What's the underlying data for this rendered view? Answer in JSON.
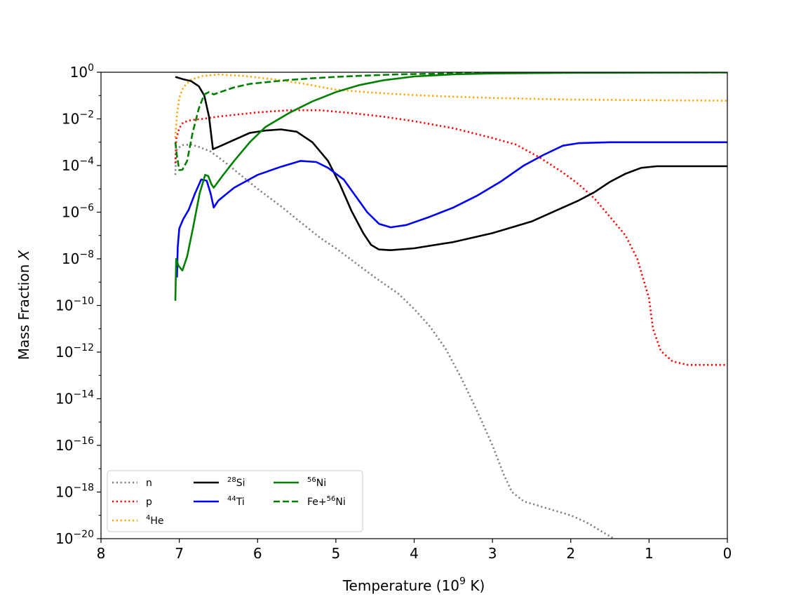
{
  "chart_data": {
    "type": "line",
    "xlabel": "Temperature (10^9 K)",
    "xlabel_main": "Temperature (10",
    "xlabel_exp": "9",
    "xlabel_tail": " K)",
    "ylabel": "Mass Fraction X",
    "ylabel_main": "Mass Fraction ",
    "ylabel_var": "X",
    "xlim": [
      8,
      0
    ],
    "ylim_log10": [
      -20,
      0
    ],
    "y_scale": "log",
    "x_ticks": [
      {
        "value": 8,
        "label": "8"
      },
      {
        "value": 7,
        "label": "7"
      },
      {
        "value": 6,
        "label": "6"
      },
      {
        "value": 5,
        "label": "5"
      },
      {
        "value": 4,
        "label": "4"
      },
      {
        "value": 3,
        "label": "3"
      },
      {
        "value": 2,
        "label": "2"
      },
      {
        "value": 1,
        "label": "1"
      },
      {
        "value": 0,
        "label": "0"
      }
    ],
    "y_ticks": [
      {
        "exp": 0,
        "base": "10",
        "sup": "0"
      },
      {
        "exp": -2,
        "base": "10",
        "sup": "−2"
      },
      {
        "exp": -4,
        "base": "10",
        "sup": "−4"
      },
      {
        "exp": -6,
        "base": "10",
        "sup": "−6"
      },
      {
        "exp": -8,
        "base": "10",
        "sup": "−8"
      },
      {
        "exp": -10,
        "base": "10",
        "sup": "−10"
      },
      {
        "exp": -12,
        "base": "10",
        "sup": "−12"
      },
      {
        "exp": -14,
        "base": "10",
        "sup": "−14"
      },
      {
        "exp": -16,
        "base": "10",
        "sup": "−16"
      },
      {
        "exp": -18,
        "base": "10",
        "sup": "−18"
      },
      {
        "exp": -20,
        "base": "10",
        "sup": "−20"
      }
    ],
    "legend_position": "lower-left",
    "series": [
      {
        "name": "n",
        "label_pre": "",
        "label_sup": "",
        "label_main": "n",
        "color": "#808080",
        "dash": "dotted",
        "points": [
          [
            7.05,
            -4.4
          ],
          [
            7.04,
            -3.4
          ],
          [
            7.02,
            -3.25
          ],
          [
            6.95,
            -3.12
          ],
          [
            6.85,
            -3.1
          ],
          [
            6.75,
            -3.2
          ],
          [
            6.6,
            -3.4
          ],
          [
            6.4,
            -3.9
          ],
          [
            6.2,
            -4.45
          ],
          [
            6.0,
            -5.0
          ],
          [
            5.7,
            -5.75
          ],
          [
            5.5,
            -6.3
          ],
          [
            5.2,
            -7.1
          ],
          [
            5.0,
            -7.55
          ],
          [
            4.7,
            -8.3
          ],
          [
            4.5,
            -8.8
          ],
          [
            4.2,
            -9.5
          ],
          [
            4.0,
            -10.15
          ],
          [
            3.8,
            -10.9
          ],
          [
            3.6,
            -11.85
          ],
          [
            3.4,
            -13.1
          ],
          [
            3.2,
            -14.5
          ],
          [
            3.0,
            -16.0
          ],
          [
            2.85,
            -17.3
          ],
          [
            2.75,
            -18.0
          ],
          [
            2.6,
            -18.4
          ],
          [
            2.3,
            -18.7
          ],
          [
            2.0,
            -19.0
          ],
          [
            1.8,
            -19.3
          ],
          [
            1.6,
            -19.7
          ],
          [
            1.45,
            -20.0
          ],
          [
            1.35,
            -20.1
          ]
        ]
      },
      {
        "name": "p",
        "label_pre": "",
        "label_sup": "",
        "label_main": "p",
        "color": "#ff0000",
        "dash": "dotted",
        "points": [
          [
            7.05,
            -3.9
          ],
          [
            7.04,
            -2.85
          ],
          [
            7.0,
            -2.4
          ],
          [
            6.95,
            -2.15
          ],
          [
            6.85,
            -2.05
          ],
          [
            6.7,
            -2.0
          ],
          [
            6.5,
            -1.9
          ],
          [
            6.0,
            -1.72
          ],
          [
            5.6,
            -1.63
          ],
          [
            5.2,
            -1.63
          ],
          [
            4.8,
            -1.75
          ],
          [
            4.4,
            -1.9
          ],
          [
            4.0,
            -2.1
          ],
          [
            3.5,
            -2.4
          ],
          [
            3.0,
            -2.82
          ],
          [
            2.7,
            -3.1
          ],
          [
            2.4,
            -3.65
          ],
          [
            2.1,
            -4.3
          ],
          [
            1.9,
            -4.8
          ],
          [
            1.7,
            -5.4
          ],
          [
            1.5,
            -6.2
          ],
          [
            1.3,
            -7.0
          ],
          [
            1.15,
            -8.0
          ],
          [
            1.0,
            -9.7
          ],
          [
            0.95,
            -11.0
          ],
          [
            0.85,
            -11.95
          ],
          [
            0.7,
            -12.4
          ],
          [
            0.5,
            -12.55
          ],
          [
            0.0,
            -12.55
          ]
        ]
      },
      {
        "name": "4He",
        "label_pre": "",
        "label_sup": "4",
        "label_main": "He",
        "color": "#ffa500",
        "dash": "dotted",
        "points": [
          [
            7.05,
            -2.8
          ],
          [
            7.03,
            -1.8
          ],
          [
            7.0,
            -1.1
          ],
          [
            6.95,
            -0.65
          ],
          [
            6.85,
            -0.32
          ],
          [
            6.7,
            -0.16
          ],
          [
            6.5,
            -0.1
          ],
          [
            6.2,
            -0.15
          ],
          [
            5.8,
            -0.3
          ],
          [
            5.4,
            -0.5
          ],
          [
            5.0,
            -0.75
          ],
          [
            4.5,
            -0.88
          ],
          [
            4.0,
            -0.98
          ],
          [
            3.5,
            -1.05
          ],
          [
            3.0,
            -1.1
          ],
          [
            2.5,
            -1.14
          ],
          [
            2.0,
            -1.17
          ],
          [
            1.0,
            -1.2
          ],
          [
            0.0,
            -1.22
          ]
        ]
      },
      {
        "name": "28Si",
        "label_pre": "",
        "label_sup": "28",
        "label_main": "Si",
        "color": "#000000",
        "dash": "solid",
        "points": [
          [
            7.05,
            -0.2
          ],
          [
            6.95,
            -0.3
          ],
          [
            6.85,
            -0.38
          ],
          [
            6.75,
            -0.6
          ],
          [
            6.68,
            -1.0
          ],
          [
            6.62,
            -1.9
          ],
          [
            6.57,
            -3.3
          ],
          [
            6.5,
            -3.2
          ],
          [
            6.3,
            -2.9
          ],
          [
            6.1,
            -2.6
          ],
          [
            5.9,
            -2.5
          ],
          [
            5.7,
            -2.45
          ],
          [
            5.5,
            -2.55
          ],
          [
            5.3,
            -3.0
          ],
          [
            5.1,
            -3.8
          ],
          [
            4.95,
            -4.8
          ],
          [
            4.8,
            -5.95
          ],
          [
            4.65,
            -6.9
          ],
          [
            4.55,
            -7.4
          ],
          [
            4.45,
            -7.6
          ],
          [
            4.3,
            -7.63
          ],
          [
            4.0,
            -7.55
          ],
          [
            3.5,
            -7.28
          ],
          [
            3.0,
            -6.9
          ],
          [
            2.5,
            -6.4
          ],
          [
            2.2,
            -5.95
          ],
          [
            1.9,
            -5.5
          ],
          [
            1.7,
            -5.15
          ],
          [
            1.5,
            -4.7
          ],
          [
            1.3,
            -4.35
          ],
          [
            1.1,
            -4.1
          ],
          [
            0.9,
            -4.03
          ],
          [
            0.5,
            -4.03
          ],
          [
            0.0,
            -4.03
          ]
        ]
      },
      {
        "name": "44Ti",
        "label_pre": "",
        "label_sup": "44",
        "label_main": "Ti",
        "color": "#0000ff",
        "dash": "solid",
        "points": [
          [
            7.03,
            -8.8
          ],
          [
            7.02,
            -7.5
          ],
          [
            7.0,
            -6.7
          ],
          [
            6.95,
            -6.3
          ],
          [
            6.88,
            -5.9
          ],
          [
            6.8,
            -5.2
          ],
          [
            6.72,
            -4.6
          ],
          [
            6.65,
            -4.65
          ],
          [
            6.6,
            -5.2
          ],
          [
            6.56,
            -5.8
          ],
          [
            6.5,
            -5.5
          ],
          [
            6.3,
            -4.95
          ],
          [
            6.0,
            -4.4
          ],
          [
            5.7,
            -4.05
          ],
          [
            5.45,
            -3.8
          ],
          [
            5.25,
            -3.85
          ],
          [
            5.1,
            -4.1
          ],
          [
            4.9,
            -4.6
          ],
          [
            4.75,
            -5.3
          ],
          [
            4.6,
            -6.0
          ],
          [
            4.45,
            -6.5
          ],
          [
            4.3,
            -6.65
          ],
          [
            4.1,
            -6.55
          ],
          [
            3.8,
            -6.2
          ],
          [
            3.5,
            -5.8
          ],
          [
            3.2,
            -5.3
          ],
          [
            2.9,
            -4.7
          ],
          [
            2.6,
            -4.0
          ],
          [
            2.35,
            -3.55
          ],
          [
            2.1,
            -3.15
          ],
          [
            1.9,
            -3.04
          ],
          [
            1.5,
            -3.0
          ],
          [
            0.0,
            -3.0
          ]
        ]
      },
      {
        "name": "56Ni",
        "label_pre": "",
        "label_sup": "56",
        "label_main": "Ni",
        "color": "#008000",
        "dash": "solid",
        "points": [
          [
            7.05,
            -9.8
          ],
          [
            7.04,
            -8.0
          ],
          [
            7.01,
            -8.3
          ],
          [
            6.96,
            -8.5
          ],
          [
            6.9,
            -7.9
          ],
          [
            6.82,
            -6.6
          ],
          [
            6.74,
            -5.2
          ],
          [
            6.67,
            -4.4
          ],
          [
            6.63,
            -4.45
          ],
          [
            6.59,
            -4.8
          ],
          [
            6.56,
            -4.95
          ],
          [
            6.45,
            -4.45
          ],
          [
            6.3,
            -3.8
          ],
          [
            6.1,
            -3.0
          ],
          [
            5.9,
            -2.35
          ],
          [
            5.6,
            -1.75
          ],
          [
            5.3,
            -1.25
          ],
          [
            5.0,
            -0.85
          ],
          [
            4.7,
            -0.55
          ],
          [
            4.4,
            -0.35
          ],
          [
            4.0,
            -0.18
          ],
          [
            3.5,
            -0.09
          ],
          [
            3.0,
            -0.05
          ],
          [
            2.0,
            -0.02
          ],
          [
            0.0,
            -0.01
          ]
        ]
      },
      {
        "name": "Fe+56Ni",
        "label_pre": "Fe+",
        "label_sup": "56",
        "label_main": "Ni",
        "color": "#008000",
        "dash": "dashed",
        "points": [
          [
            7.05,
            -3.0
          ],
          [
            7.03,
            -3.6
          ],
          [
            7.0,
            -4.2
          ],
          [
            6.96,
            -4.18
          ],
          [
            6.9,
            -3.8
          ],
          [
            6.83,
            -2.6
          ],
          [
            6.75,
            -1.55
          ],
          [
            6.68,
            -0.95
          ],
          [
            6.62,
            -0.85
          ],
          [
            6.56,
            -0.95
          ],
          [
            6.45,
            -0.82
          ],
          [
            6.3,
            -0.65
          ],
          [
            6.1,
            -0.5
          ],
          [
            5.9,
            -0.43
          ],
          [
            5.6,
            -0.33
          ],
          [
            5.3,
            -0.26
          ],
          [
            5.0,
            -0.2
          ],
          [
            4.6,
            -0.14
          ],
          [
            4.2,
            -0.09
          ],
          [
            3.5,
            -0.05
          ],
          [
            2.5,
            -0.03
          ],
          [
            1.0,
            -0.01
          ],
          [
            0.0,
            -0.01
          ]
        ]
      }
    ]
  }
}
